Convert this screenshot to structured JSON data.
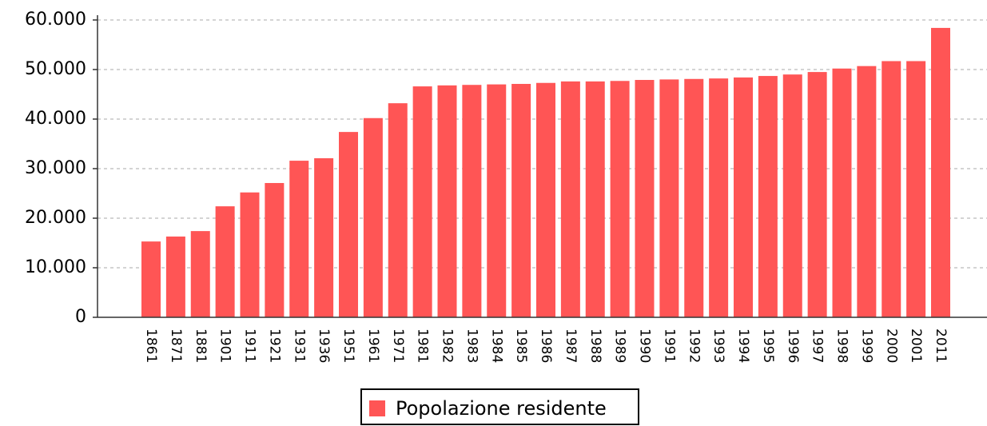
{
  "chart_data": {
    "type": "bar",
    "categories": [
      "1861",
      "1871",
      "1881",
      "1901",
      "1911",
      "1921",
      "1931",
      "1936",
      "1951",
      "1961",
      "1971",
      "1981",
      "1982",
      "1983",
      "1984",
      "1985",
      "1986",
      "1987",
      "1988",
      "1989",
      "1990",
      "1991",
      "1992",
      "1993",
      "1994",
      "1995",
      "1996",
      "1997",
      "1998",
      "1999",
      "2000",
      "2001",
      "2011"
    ],
    "series": [
      {
        "name": "Popolazione residente",
        "color": "#ff5555",
        "values": [
          15300,
          16300,
          17400,
          22400,
          25200,
          27100,
          31600,
          32100,
          37400,
          40200,
          43200,
          46600,
          46800,
          46900,
          47000,
          47100,
          47300,
          47600,
          47600,
          47700,
          47900,
          48000,
          48100,
          48200,
          48400,
          48700,
          49000,
          49500,
          50200,
          50700,
          51700,
          51700,
          58400
        ]
      }
    ],
    "ylim": [
      0,
      60000
    ],
    "yticks": [
      0,
      {
        "value": 10000,
        "label": "10.000"
      },
      {
        "value": 20000,
        "label": "20.000"
      },
      {
        "value": 30000,
        "label": "30.000"
      },
      {
        "value": 40000,
        "label": "40.000"
      },
      {
        "value": 50000,
        "label": "50.000"
      },
      {
        "value": 60000,
        "label": "60.000"
      }
    ],
    "grid": true,
    "legend": "bottom"
  }
}
